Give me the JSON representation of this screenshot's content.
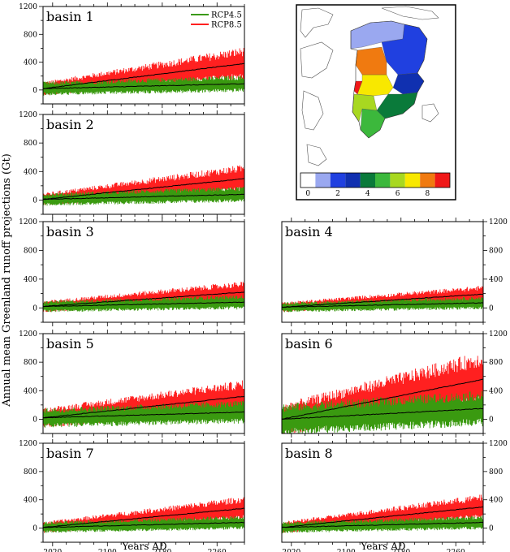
{
  "figure": {
    "ylabel": "Annual mean Greenland runoff projections (Gt)",
    "xlabel": "Years AD"
  },
  "legend": [
    {
      "label": "RCP4.5",
      "color": "#3a9a10"
    },
    {
      "label": "RCP8.5",
      "color": "#ff2020"
    }
  ],
  "map": {
    "colorbar_ticks": [
      "0",
      "2",
      "4",
      "6",
      "8"
    ],
    "colorbar_colors": [
      "#ffffff",
      "#9aa8f0",
      "#2040e0",
      "#1030b0",
      "#0a7a3a",
      "#3cb83c",
      "#a8d820",
      "#f8e800",
      "#f07a10",
      "#f01818"
    ],
    "basin_colors": {
      "1": "#9aa8f0",
      "2": "#2040e0",
      "3": "#1030b0",
      "4": "#0a7a3a",
      "5": "#3cb83c",
      "6": "#a8d820",
      "7": "#f8e800",
      "8": "#f07a10",
      "9": "#f01818"
    }
  },
  "chart_data": [
    {
      "type": "area",
      "title": "basin 1",
      "x_ticks": [
        2020,
        2100,
        2180,
        2260
      ],
      "xlim": [
        2006,
        2300
      ],
      "ylim": [
        -200,
        1200
      ],
      "y_ticks": [
        0,
        400,
        800,
        1200
      ],
      "series": [
        {
          "name": "RCP8.5",
          "mean_start": 20,
          "mean_end": 380,
          "spread_start": 100,
          "spread_end": 240
        },
        {
          "name": "RCP4.5",
          "mean_start": 20,
          "mean_end": 90,
          "spread_start": 100,
          "spread_end": 120
        }
      ]
    },
    {
      "type": "area",
      "title": "basin 2",
      "x_ticks": [
        2020,
        2100,
        2180,
        2260
      ],
      "xlim": [
        2006,
        2300
      ],
      "ylim": [
        -200,
        1200
      ],
      "y_ticks": [
        0,
        400,
        800,
        1200
      ],
      "series": [
        {
          "name": "RCP8.5",
          "mean_start": 10,
          "mean_end": 300,
          "spread_start": 90,
          "spread_end": 200
        },
        {
          "name": "RCP4.5",
          "mean_start": 10,
          "mean_end": 80,
          "spread_start": 90,
          "spread_end": 110
        }
      ]
    },
    {
      "type": "area",
      "title": "basin 3",
      "x_ticks": [
        2020,
        2100,
        2180,
        2260
      ],
      "xlim": [
        2006,
        2300
      ],
      "ylim": [
        -200,
        1200
      ],
      "y_ticks": [
        0,
        400,
        800,
        1200
      ],
      "series": [
        {
          "name": "RCP8.5",
          "mean_start": 20,
          "mean_end": 220,
          "spread_start": 80,
          "spread_end": 150
        },
        {
          "name": "RCP4.5",
          "mean_start": 20,
          "mean_end": 80,
          "spread_start": 80,
          "spread_end": 100
        }
      ]
    },
    {
      "type": "area",
      "title": "basin 4",
      "x_ticks": [
        2020,
        2100,
        2180,
        2260
      ],
      "xlim": [
        2006,
        2300
      ],
      "ylim": [
        -200,
        1200
      ],
      "y_ticks": [
        0,
        400,
        800,
        1200
      ],
      "series": [
        {
          "name": "RCP8.5",
          "mean_start": 10,
          "mean_end": 190,
          "spread_start": 70,
          "spread_end": 120
        },
        {
          "name": "RCP4.5",
          "mean_start": 10,
          "mean_end": 70,
          "spread_start": 70,
          "spread_end": 90
        }
      ]
    },
    {
      "type": "area",
      "title": "basin 5",
      "x_ticks": [
        2020,
        2100,
        2180,
        2260
      ],
      "xlim": [
        2006,
        2300
      ],
      "ylim": [
        -200,
        1200
      ],
      "y_ticks": [
        0,
        400,
        800,
        1200
      ],
      "series": [
        {
          "name": "RCP8.5",
          "mean_start": 20,
          "mean_end": 320,
          "spread_start": 140,
          "spread_end": 230
        },
        {
          "name": "RCP4.5",
          "mean_start": 20,
          "mean_end": 100,
          "spread_start": 140,
          "spread_end": 160
        }
      ]
    },
    {
      "type": "area",
      "title": "basin 6",
      "x_ticks": [
        2020,
        2100,
        2180,
        2260
      ],
      "xlim": [
        2006,
        2300
      ],
      "ylim": [
        -200,
        1200
      ],
      "y_ticks": [
        0,
        400,
        800,
        1200
      ],
      "series": [
        {
          "name": "RCP8.5",
          "mean_start": 0,
          "mean_end": 560,
          "spread_start": 220,
          "spread_end": 400
        },
        {
          "name": "RCP4.5",
          "mean_start": 0,
          "mean_end": 150,
          "spread_start": 220,
          "spread_end": 250
        }
      ]
    },
    {
      "type": "area",
      "title": "basin 7",
      "x_ticks": [
        2020,
        2100,
        2180,
        2260
      ],
      "xlim": [
        2006,
        2300
      ],
      "ylim": [
        -200,
        1200
      ],
      "y_ticks": [
        0,
        400,
        800,
        1200
      ],
      "series": [
        {
          "name": "RCP8.5",
          "mean_start": 10,
          "mean_end": 280,
          "spread_start": 80,
          "spread_end": 170
        },
        {
          "name": "RCP4.5",
          "mean_start": 10,
          "mean_end": 80,
          "spread_start": 80,
          "spread_end": 100
        }
      ]
    },
    {
      "type": "area",
      "title": "basin 8",
      "x_ticks": [
        2020,
        2100,
        2180,
        2260
      ],
      "xlim": [
        2006,
        2300
      ],
      "ylim": [
        -200,
        1200
      ],
      "y_ticks": [
        0,
        400,
        800,
        1200
      ],
      "series": [
        {
          "name": "RCP8.5",
          "mean_start": 10,
          "mean_end": 300,
          "spread_start": 80,
          "spread_end": 180
        },
        {
          "name": "RCP4.5",
          "mean_start": 10,
          "mean_end": 80,
          "spread_start": 80,
          "spread_end": 100
        }
      ]
    }
  ]
}
